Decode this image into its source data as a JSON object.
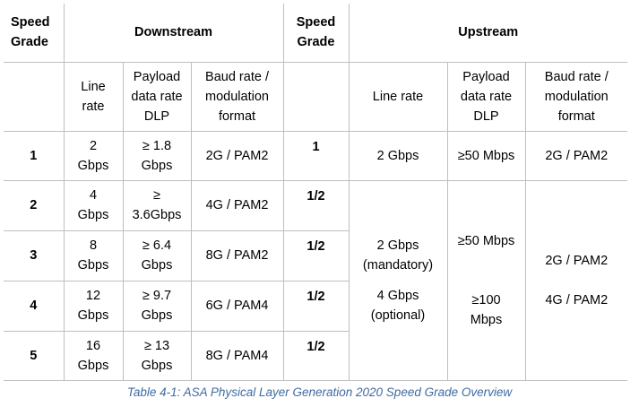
{
  "table": {
    "header": {
      "speed_grade": [
        "Speed",
        "Grade"
      ],
      "downstream": "Downstream",
      "speed_grade_right": [
        "Speed",
        "Grade"
      ],
      "upstream": "Upstream"
    },
    "subheader": {
      "ds_line_rate": [
        "Line",
        "rate"
      ],
      "ds_payload": [
        "Payload",
        "data rate",
        "DLP"
      ],
      "ds_baud": [
        "Baud rate /",
        "modulation",
        "format"
      ],
      "us_line_rate": "Line rate",
      "us_payload": [
        "Payload",
        "data rate",
        "DLP"
      ],
      "us_baud": [
        "Baud rate /",
        "modulation",
        "format"
      ]
    },
    "rows": [
      {
        "grade": "1",
        "line_rate": [
          "2",
          "Gbps"
        ],
        "payload": [
          "≥ 1.8",
          "Gbps"
        ],
        "baud": "2G / PAM2",
        "us_grade": "1"
      },
      {
        "grade": "2",
        "line_rate": [
          "4",
          "Gbps"
        ],
        "payload": [
          "≥",
          "3.6Gbps"
        ],
        "baud": "4G / PAM2",
        "us_grade": "1/2"
      },
      {
        "grade": "3",
        "line_rate": [
          "8",
          "Gbps"
        ],
        "payload": [
          "≥ 6.4",
          "Gbps"
        ],
        "baud": "8G / PAM2",
        "us_grade": "1/2"
      },
      {
        "grade": "4",
        "line_rate": [
          "12",
          "Gbps"
        ],
        "payload": [
          "≥ 9.7",
          "Gbps"
        ],
        "baud": "6G / PAM4",
        "us_grade": "1/2"
      },
      {
        "grade": "5",
        "line_rate": [
          "16",
          "Gbps"
        ],
        "payload": [
          "≥ 13",
          "Gbps"
        ],
        "baud": "8G / PAM4",
        "us_grade": "1/2"
      }
    ],
    "upstream_row1": {
      "line_rate": "2 Gbps",
      "payload": "≥50 Mbps",
      "baud": "2G / PAM2"
    },
    "upstream_merged": {
      "line_rate": [
        "2 Gbps",
        "(mandatory)",
        "4 Gbps",
        "(optional)"
      ],
      "payload": [
        "≥50 Mbps",
        "≥100",
        "Mbps"
      ],
      "baud": [
        "2G / PAM2",
        "4G / PAM2"
      ]
    }
  },
  "caption": "Table 4-1: ASA Physical Layer Generation 2020 Speed Grade Overview"
}
